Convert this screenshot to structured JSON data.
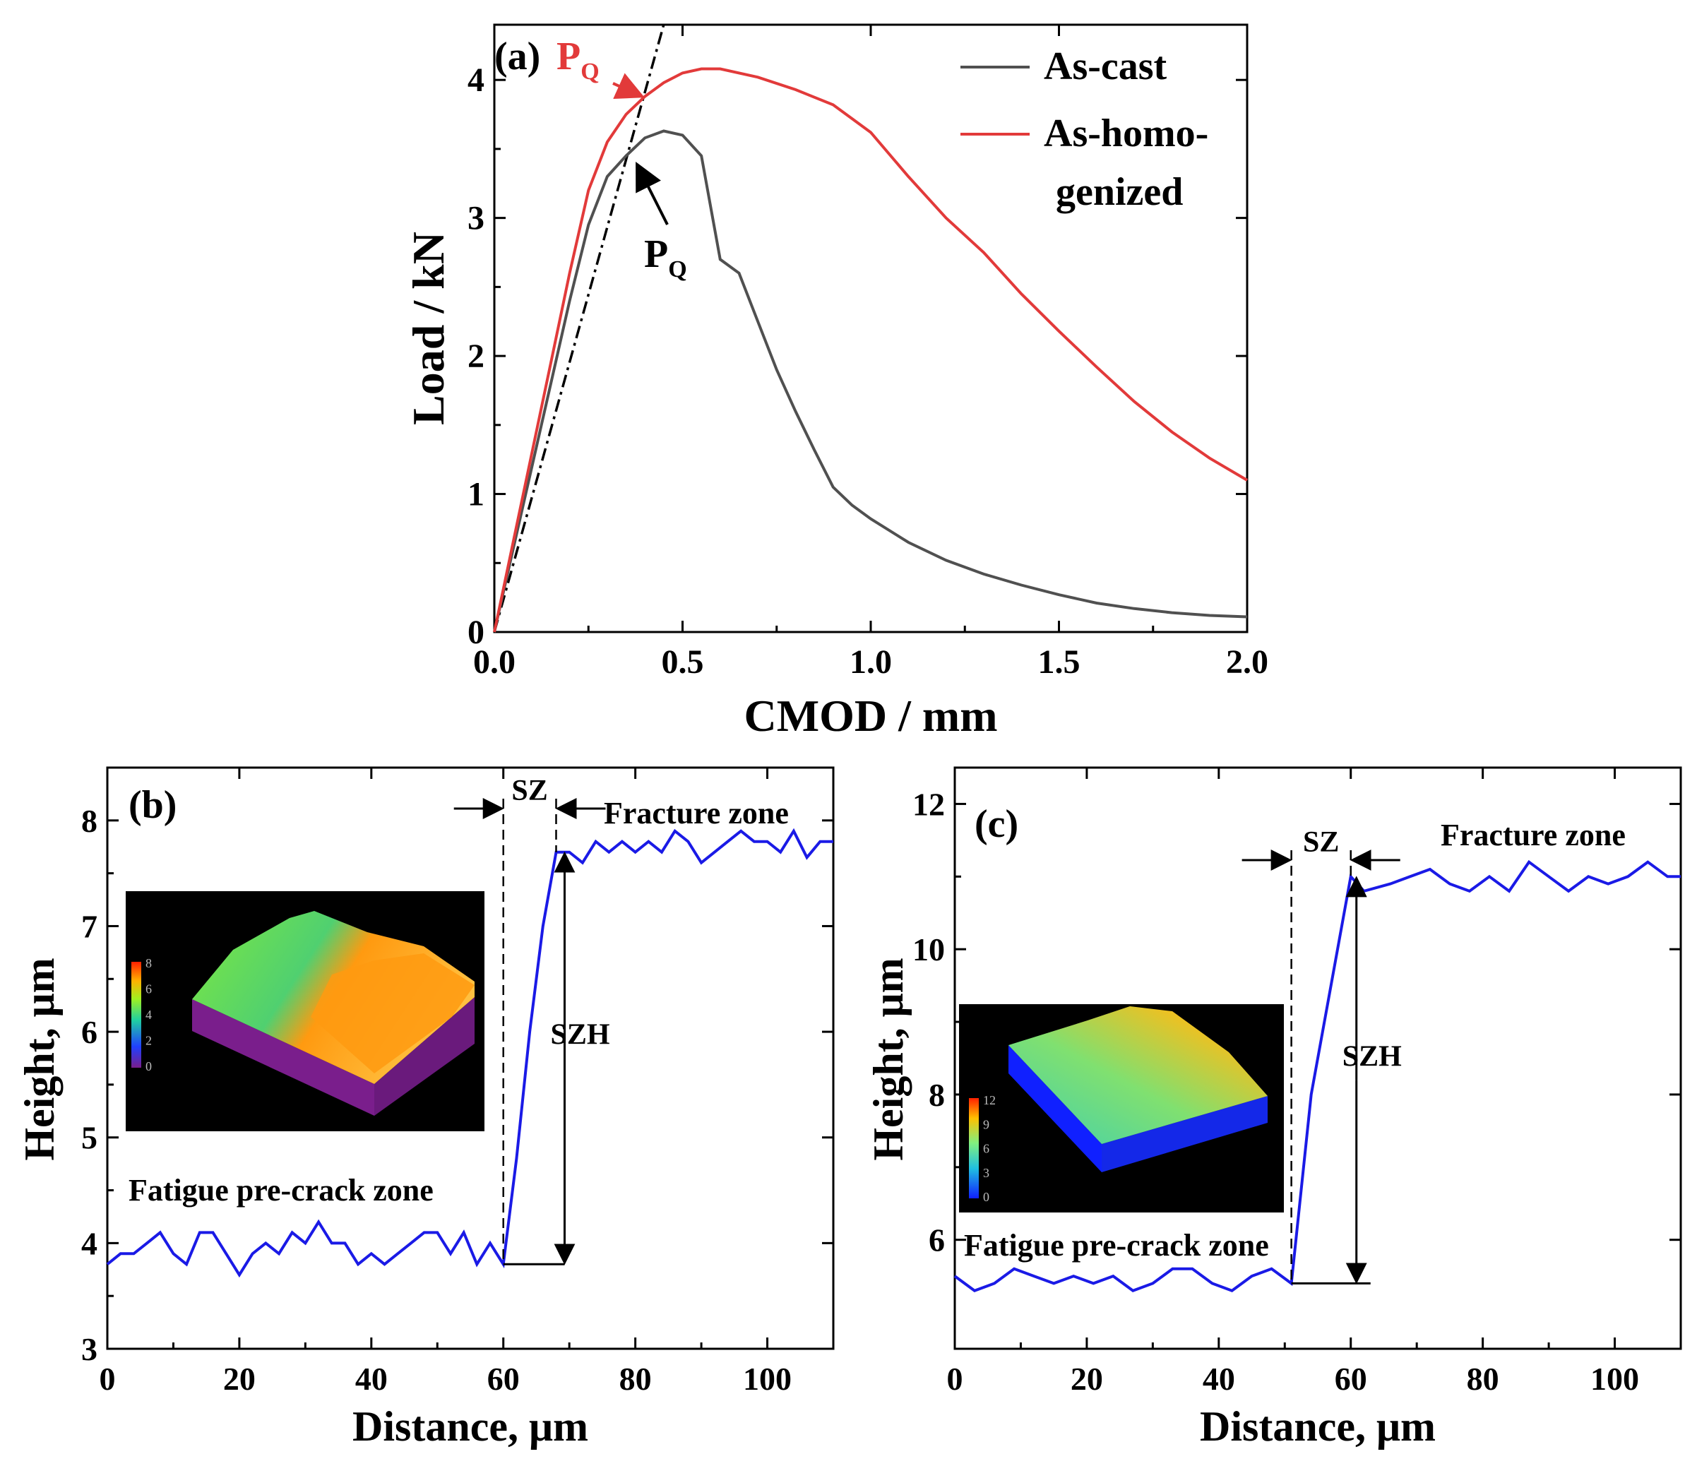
{
  "chart_data": [
    {
      "panel": "a",
      "type": "line",
      "panel_label": "(a)",
      "xlabel": "CMOD / mm",
      "ylabel": "Load / kN",
      "xlim": [
        0,
        2.0
      ],
      "ylim": [
        0,
        4.4
      ],
      "xticks": [
        "0.0",
        "0.5",
        "1.0",
        "1.5",
        "2.0"
      ],
      "xtick_values": [
        0,
        0.5,
        1.0,
        1.5,
        2.0
      ],
      "yticks": [
        "0",
        "1",
        "2",
        "3",
        "4"
      ],
      "ytick_values": [
        0,
        1,
        2,
        3,
        4
      ],
      "legend_position": "top-right",
      "series": [
        {
          "name": "As-cast",
          "legend_lines": [
            "As-cast"
          ],
          "color": "#505050",
          "x": [
            0,
            0.05,
            0.1,
            0.15,
            0.2,
            0.25,
            0.3,
            0.35,
            0.4,
            0.45,
            0.5,
            0.55,
            0.6,
            0.65,
            0.7,
            0.75,
            0.8,
            0.85,
            0.9,
            0.95,
            1.0,
            1.1,
            1.2,
            1.3,
            1.4,
            1.5,
            1.6,
            1.7,
            1.8,
            1.9,
            2.0
          ],
          "y": [
            0,
            0.6,
            1.2,
            1.8,
            2.4,
            2.95,
            3.3,
            3.45,
            3.58,
            3.63,
            3.6,
            3.45,
            2.7,
            2.6,
            2.25,
            1.9,
            1.6,
            1.32,
            1.05,
            0.92,
            0.82,
            0.65,
            0.52,
            0.42,
            0.34,
            0.27,
            0.21,
            0.17,
            0.14,
            0.12,
            0.11
          ]
        },
        {
          "name": "As-homo-genized",
          "legend_lines": [
            "As-homo-",
            "genized"
          ],
          "color": "#e23a3a",
          "x": [
            0,
            0.05,
            0.1,
            0.15,
            0.2,
            0.25,
            0.3,
            0.35,
            0.4,
            0.45,
            0.5,
            0.55,
            0.6,
            0.7,
            0.8,
            0.9,
            0.95,
            1.0,
            1.1,
            1.2,
            1.3,
            1.4,
            1.5,
            1.6,
            1.7,
            1.8,
            1.9,
            2.0
          ],
          "y": [
            0,
            0.65,
            1.3,
            1.95,
            2.6,
            3.2,
            3.55,
            3.75,
            3.88,
            3.98,
            4.05,
            4.08,
            4.08,
            4.02,
            3.93,
            3.82,
            3.72,
            3.62,
            3.3,
            3.0,
            2.75,
            2.45,
            2.18,
            1.92,
            1.67,
            1.45,
            1.26,
            1.1
          ]
        }
      ],
      "tangent_line": {
        "x": [
          0,
          0.45
        ],
        "y": [
          0,
          4.4
        ],
        "color": "#000000",
        "style": "dash-dot"
      },
      "annotations": [
        {
          "text": "P",
          "sub": "Q",
          "color": "#e23a3a",
          "target_x": 0.4,
          "target_y": 3.86,
          "series": "As-homo-genized"
        },
        {
          "text": "P",
          "sub": "Q",
          "color": "#000000",
          "target_x": 0.36,
          "target_y": 3.42,
          "series": "As-cast"
        }
      ]
    },
    {
      "panel": "b",
      "type": "line",
      "panel_label": "(b)",
      "xlabel": "Distance, μm",
      "ylabel": "Height, μm",
      "xlim": [
        0,
        110
      ],
      "ylim": [
        3,
        8.5
      ],
      "xticks": [
        "0",
        "20",
        "40",
        "60",
        "80",
        "100"
      ],
      "xtick_values": [
        0,
        20,
        40,
        60,
        80,
        100
      ],
      "yticks": [
        "3",
        "4",
        "5",
        "6",
        "7",
        "8"
      ],
      "ytick_values": [
        3,
        4,
        5,
        6,
        7,
        8
      ],
      "series": [
        {
          "name": "Height profile",
          "color": "#1a1ae6",
          "x": [
            0,
            2,
            4,
            6,
            8,
            10,
            12,
            14,
            16,
            18,
            20,
            22,
            24,
            26,
            28,
            30,
            32,
            34,
            36,
            38,
            40,
            42,
            44,
            46,
            48,
            50,
            52,
            54,
            56,
            58,
            60,
            62,
            64,
            66,
            68,
            70,
            72,
            74,
            76,
            78,
            80,
            82,
            84,
            86,
            88,
            90,
            92,
            94,
            96,
            98,
            100,
            102,
            104,
            106,
            108,
            110
          ],
          "y": [
            3.8,
            3.9,
            3.9,
            4.0,
            4.1,
            3.9,
            3.8,
            4.1,
            4.1,
            3.9,
            3.7,
            3.9,
            4.0,
            3.9,
            4.1,
            4.0,
            4.2,
            4.0,
            4.0,
            3.8,
            3.9,
            3.8,
            3.9,
            4.0,
            4.1,
            4.1,
            3.9,
            4.1,
            3.8,
            4.0,
            3.8,
            4.8,
            6.0,
            7.0,
            7.7,
            7.7,
            7.6,
            7.8,
            7.7,
            7.8,
            7.7,
            7.8,
            7.7,
            7.9,
            7.8,
            7.6,
            7.7,
            7.8,
            7.9,
            7.8,
            7.8,
            7.7,
            7.9,
            7.65,
            7.8,
            7.8
          ]
        }
      ],
      "labels": {
        "zone_left": "Fatigue pre-crack zone",
        "zone_right": "Fracture zone",
        "sz": "SZ",
        "szh": "SZH"
      },
      "sz_range": [
        60,
        68
      ],
      "szh_range": [
        3.8,
        7.7
      ],
      "inset": {
        "colorbar_ticks": [
          "8",
          "6",
          "4",
          "2",
          "0"
        ]
      }
    },
    {
      "panel": "c",
      "type": "line",
      "panel_label": "(c)",
      "xlabel": "Distance, μm",
      "ylabel": "Height, μm",
      "xlim": [
        0,
        110
      ],
      "ylim": [
        4.5,
        12.5
      ],
      "xticks": [
        "0",
        "20",
        "40",
        "60",
        "80",
        "100"
      ],
      "xtick_values": [
        0,
        20,
        40,
        60,
        80,
        100
      ],
      "yticks": [
        "6",
        "8",
        "10",
        "12"
      ],
      "ytick_values": [
        6,
        8,
        10,
        12
      ],
      "series": [
        {
          "name": "Height profile",
          "color": "#1a1ae6",
          "x": [
            0,
            3,
            6,
            9,
            12,
            15,
            18,
            21,
            24,
            27,
            30,
            33,
            36,
            39,
            42,
            45,
            48,
            51,
            54,
            57,
            60,
            62,
            66,
            69,
            72,
            75,
            78,
            81,
            84,
            87,
            90,
            93,
            96,
            99,
            102,
            105,
            108,
            110
          ],
          "y": [
            5.5,
            5.3,
            5.4,
            5.6,
            5.5,
            5.4,
            5.5,
            5.4,
            5.5,
            5.3,
            5.4,
            5.6,
            5.6,
            5.4,
            5.3,
            5.5,
            5.6,
            5.4,
            8.0,
            9.5,
            11.0,
            10.8,
            10.9,
            11.0,
            11.1,
            10.9,
            10.8,
            11.0,
            10.8,
            11.2,
            11.0,
            10.8,
            11.0,
            10.9,
            11.0,
            11.2,
            11.0,
            11.0
          ]
        }
      ],
      "labels": {
        "zone_left": "Fatigue pre-crack zone",
        "zone_right": "Fracture zone",
        "sz": "SZ",
        "szh": "SZH"
      },
      "sz_range": [
        51,
        60
      ],
      "szh_range": [
        5.4,
        11.0
      ],
      "inset": {
        "colorbar_ticks": [
          "12",
          "9",
          "6",
          "3",
          "0"
        ]
      }
    }
  ]
}
